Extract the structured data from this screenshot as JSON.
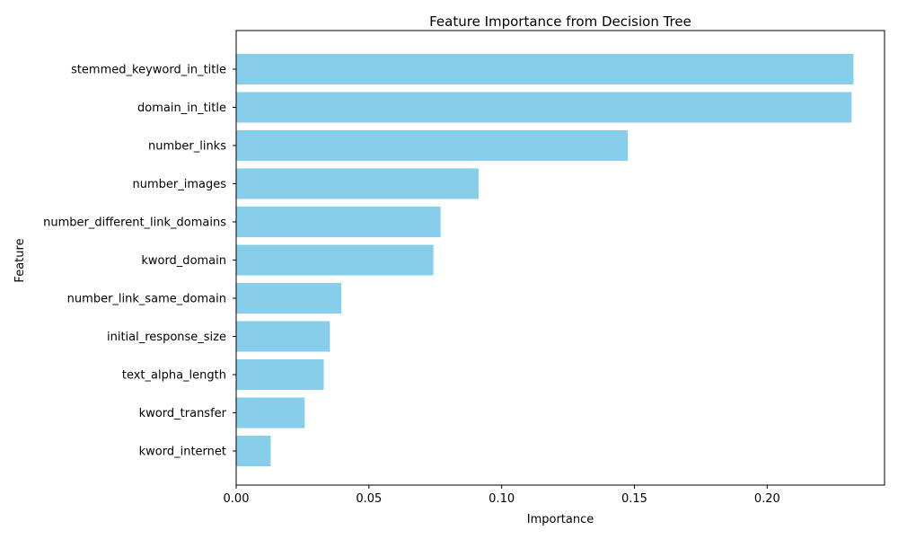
{
  "chart_data": {
    "type": "bar",
    "orientation": "horizontal",
    "title": "Feature Importance from Decision Tree",
    "xlabel": "Importance",
    "ylabel": "Feature",
    "categories": [
      "stemmed_keyword_in_title",
      "domain_in_title",
      "number_links",
      "number_images",
      "number_different_link_domains",
      "kword_domain",
      "number_link_same_domain",
      "initial_response_size",
      "text_alpha_length",
      "kword_transfer",
      "kword_internet"
    ],
    "values": [
      0.2325,
      0.2318,
      0.1475,
      0.0913,
      0.077,
      0.0743,
      0.0396,
      0.0353,
      0.033,
      0.0258,
      0.013
    ],
    "xlim": [
      0,
      0.2442
    ],
    "xticks": [
      0.0,
      0.05,
      0.1,
      0.15,
      0.2
    ],
    "xtick_labels": [
      "0.00",
      "0.05",
      "0.10",
      "0.15",
      "0.20"
    ],
    "grid": false,
    "bar_color": "#87ceeb"
  }
}
